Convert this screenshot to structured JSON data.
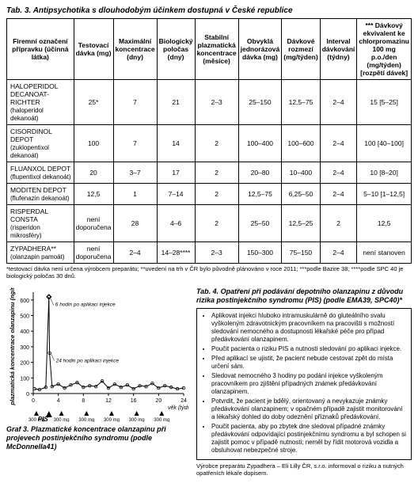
{
  "table3": {
    "title": "Tab. 3. Antipsychotika s dlouhodobým účinkem dostupná v České republice",
    "headers": [
      "Firemní označení přípravku (účinná látka)",
      "Testovací dávka (mg)",
      "Maximální koncentrace (dny)",
      "Biologický poločas (dny)",
      "Stabilní plazmatická koncentrace (měsíce)",
      "Obvyklá jednorázová dávka (mg)",
      "Dávkové rozmezí (mg/týden)",
      "Interval dávkování (týdny)",
      "*** Dávkový ekvivalent ke chlorpromazinu 100 mg p.o./den (mg/týden) [rozpětí dávek]"
    ],
    "rows": [
      {
        "drug": "HALOPERIDOL DECANOAT-RICHTER",
        "sub": "(haloperidol dekanoát)",
        "cells": [
          "25*",
          "7",
          "21",
          "2–3",
          "25–150",
          "12,5–75",
          "2–4",
          "15 [5–25]"
        ]
      },
      {
        "drug": "CISORDINOL DEPOT",
        "sub": "(zuklopentixol dekanoát)",
        "cells": [
          "100",
          "7",
          "14",
          "2",
          "100–400",
          "100–600",
          "2–4",
          "100 [40–100]"
        ]
      },
      {
        "drug": "FLUANXOL DEPOT",
        "sub": "(flupentixol dekanoát)",
        "cells": [
          "20",
          "3–7",
          "17",
          "2",
          "20–80",
          "10–400",
          "2–4",
          "10 [8–20]"
        ]
      },
      {
        "drug": "MODITEN DEPOT",
        "sub": "(flufenazin dekanoát)",
        "cells": [
          "12,5",
          "1",
          "7–14",
          "2",
          "12,5–75",
          "6,25–50",
          "2–4",
          "5–10 [1–12,5]"
        ]
      },
      {
        "drug": "RISPERDAL CONSTA",
        "sub": "(risperidon mikrosféry)",
        "cells": [
          "není doporučena",
          "28",
          "4–6",
          "2",
          "25–50",
          "12,5–25",
          "2",
          "12,5"
        ]
      },
      {
        "drug": "ZYPADHERA**",
        "sub": "(olanzapin pamoát)",
        "cells": [
          "není doporučena",
          "2–4",
          "14–28****",
          "2–3",
          "150–300",
          "75–150",
          "2–4",
          "není stanoven"
        ]
      }
    ],
    "footnote": "*testovací dávka není určena výrobcem preparátu; **uvedení na trh v ČR bylo původně plánováno v roce 2011; ***podle Bazire 38; ****podle SPC 40 je biologický poločas 30 dnů."
  },
  "chart": {
    "ylabel": "plazmatická koncentrace olanzapinu (ng/ml)",
    "annotation1": "6 hodin po aplikaci injekce",
    "annotation2": "24 hodin po aplikaci injekce",
    "xlabel": "věk (týdny)",
    "pis_label": "PIS",
    "doses": [
      "300 mg",
      "300 mg",
      "300 mg",
      "300 mg",
      "300 mg",
      "300 mg"
    ],
    "x_ticks": [
      "0",
      "4",
      "8",
      "12",
      "16",
      "20",
      "24"
    ],
    "y_ticks": [
      "0",
      "100",
      "200",
      "300",
      "400",
      "500",
      "600"
    ],
    "caption": "Graf 3. Plazmatické koncentrace olanzapinu při projevech postinjekčního syndromu (podle McDonnella41)",
    "series_color": "#000000",
    "grid": false,
    "xlim": [
      0,
      24
    ],
    "ylim": [
      0,
      650
    ],
    "data": [
      {
        "x": 0.2,
        "y": 30
      },
      {
        "x": 1,
        "y": 25
      },
      {
        "x": 2,
        "y": 40
      },
      {
        "x": 2.5,
        "y": 620
      },
      {
        "x": 2.6,
        "y": 260
      },
      {
        "x": 3,
        "y": 45
      },
      {
        "x": 4,
        "y": 60
      },
      {
        "x": 5,
        "y": 35
      },
      {
        "x": 6,
        "y": 55
      },
      {
        "x": 7,
        "y": 70
      },
      {
        "x": 8,
        "y": 40
      },
      {
        "x": 9,
        "y": 50
      },
      {
        "x": 10,
        "y": 45
      },
      {
        "x": 11,
        "y": 80
      },
      {
        "x": 12,
        "y": 35
      },
      {
        "x": 13,
        "y": 60
      },
      {
        "x": 14,
        "y": 40
      },
      {
        "x": 15,
        "y": 55
      },
      {
        "x": 16,
        "y": 30
      },
      {
        "x": 17,
        "y": 50
      },
      {
        "x": 18,
        "y": 45
      },
      {
        "x": 19,
        "y": 65
      },
      {
        "x": 20,
        "y": 35
      },
      {
        "x": 21,
        "y": 50
      },
      {
        "x": 22,
        "y": 40
      },
      {
        "x": 23,
        "y": 30
      },
      {
        "x": 24,
        "y": 35
      }
    ]
  },
  "tab4": {
    "title": "Tab. 4. Opatření při podávání depotního olanzapinu z důvodu rizika postinjekčního syndromu (PIS) (podle EMA39, SPC40)*",
    "items": [
      "Aplikovat injekci hluboko intramuskulárně do gluteálního svalu vyškoleným zdravotnickým pracovníkem na pracovišti s možností sledování nemocného a dostupnosti lékařské péče pro případ předávkování olanzapinem.",
      "Poučit pacienta o riziku PIS a nutnosti sledování po aplikaci injekce.",
      "Před aplikací se ujistit, že pacient nebude cestovat zpět do místa určení sám.",
      "Sledovat nemocného 3 hodiny po podání injekce vyškoleným pracovníkem pro zjištění případných známek předávkování olanzapinem.",
      "Potvrdit, že pacient je bdělý, orientovaný a nevykazuje známky předávkování olanzapinem; v opačném případě zajistit monitorování a lékařský dohled do doby odeznění příznaků předávkování.",
      "Poučit pacienta, aby po zbytek dne sledoval případné známky předávkování odpovídající postinjekčnímu syndromu a byl schopen si zajistit pomoc v případě nutnosti; neměl by řídit motorová vozidla a obsluhovat nebezpečné stroje."
    ],
    "footnote": "Výrobce preparátu Zypadhera – Eli Lilly ČR, s.r.o. informoval o riziku a nutných opatřeních lékaře dopisem."
  }
}
